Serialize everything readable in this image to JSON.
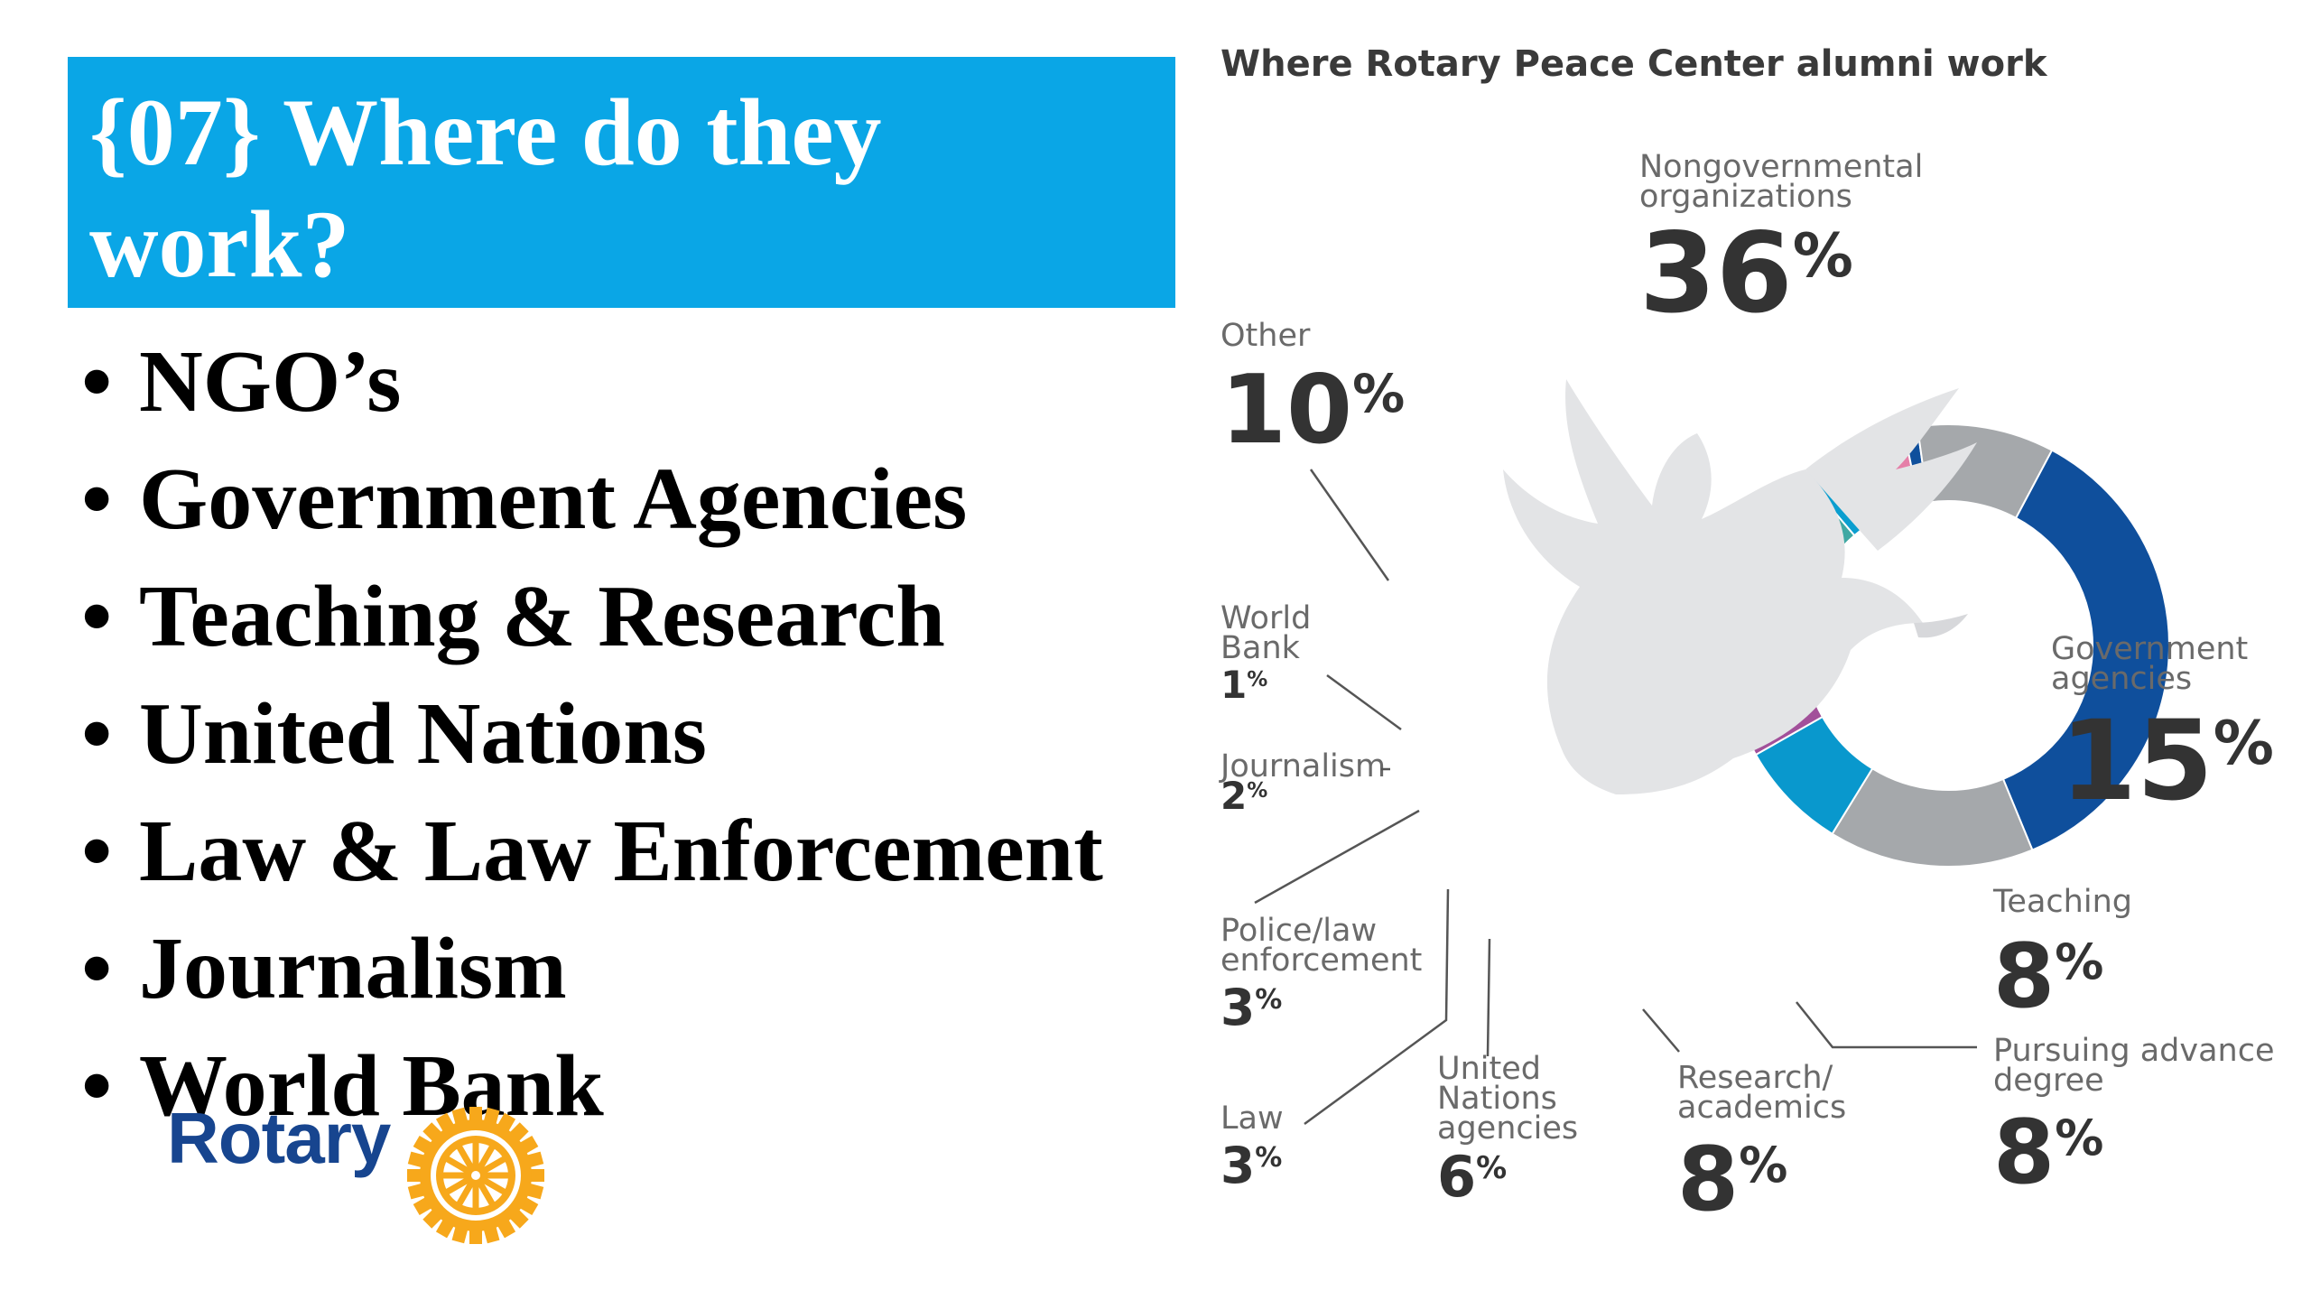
{
  "title": "{07} Where do they work?",
  "bullets": [
    "NGO’s",
    "Government Agencies",
    "Teaching & Research",
    "United Nations",
    "Law & Law Enforcement",
    "Journalism",
    "World Bank"
  ],
  "logo": {
    "text": "Rotary",
    "seal_text": "ROTARY INTERNATIONAL",
    "brand_color": "#17458f",
    "gold": "#f7a81b"
  },
  "title_box_color": "#0aa6e6",
  "chart_data": {
    "type": "pie",
    "title": "Where Rotary Peace Center alumni work",
    "donut": true,
    "center_image": "dove-icon",
    "slices": [
      {
        "label": [
          "Nongovernmental",
          "organizations"
        ],
        "value": 36,
        "display": "36%",
        "color": "#0f4f9c"
      },
      {
        "label": [
          "Government",
          "agencies"
        ],
        "value": 15,
        "display": "15%",
        "color": "#a5a8ab"
      },
      {
        "label": [
          "Teaching"
        ],
        "value": 8,
        "display": "8%",
        "color": "#0998cd"
      },
      {
        "label": [
          "Pursuing advance",
          "degree"
        ],
        "value": 8,
        "display": "8%",
        "color": "#a2509a"
      },
      {
        "label": [
          "Research/",
          "academics"
        ],
        "value": 8,
        "display": "8%",
        "color": "#de7ba0"
      },
      {
        "label": [
          "United",
          "Nations",
          "agencies"
        ],
        "value": 6,
        "display": "6%",
        "color": "#3fa8a3"
      },
      {
        "label": [
          "Law"
        ],
        "value": 3,
        "display": "3%",
        "color": "#0b9ecf"
      },
      {
        "label": [
          "Police/law",
          "enforcement"
        ],
        "value": 3,
        "display": "3%",
        "color": "#a2509a"
      },
      {
        "label": [
          "Journalism"
        ],
        "value": 2,
        "display": "2%",
        "color": "#e57fa8"
      },
      {
        "label": [
          "World",
          "Bank"
        ],
        "value": 1,
        "display": "1%",
        "color": "#0f4f9c"
      },
      {
        "label": [
          "Other"
        ],
        "value": 10,
        "display": "10%",
        "color": "#a5a8ab"
      }
    ]
  }
}
